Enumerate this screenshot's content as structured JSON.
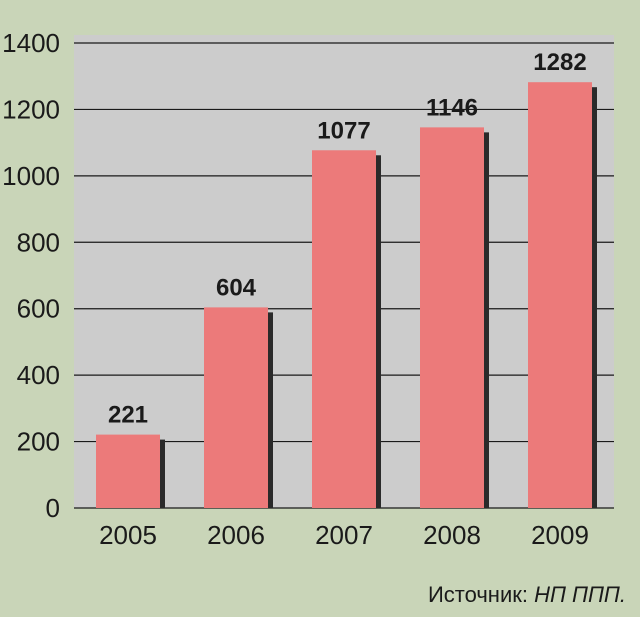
{
  "chart_data": {
    "type": "bar",
    "categories": [
      "2005",
      "2006",
      "2007",
      "2008",
      "2009"
    ],
    "values": [
      221,
      604,
      1077,
      1146,
      1282
    ],
    "title": "",
    "xlabel": "",
    "ylabel": "",
    "ylim": [
      0,
      1400
    ],
    "yticks": [
      0,
      200,
      400,
      600,
      800,
      1000,
      1200,
      1400
    ],
    "grid": true,
    "colors": {
      "page_background": "#c9d5b8",
      "plot_background": "#cccccc",
      "bar": "#ec7a7a",
      "bar_shadow": "#2a2a2a",
      "grid": "#1a1a1a"
    }
  },
  "source": {
    "prefix": "Источник: ",
    "name": "НП ППП."
  }
}
